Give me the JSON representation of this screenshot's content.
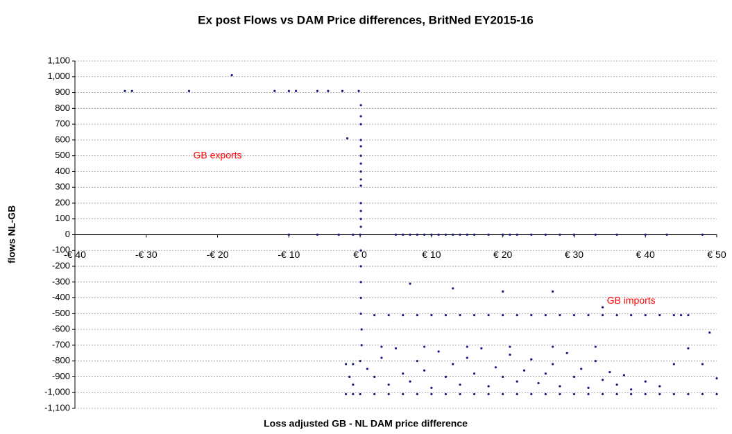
{
  "chart_data": {
    "type": "scatter",
    "title": "Ex post Flows vs DAM Price differences, BritNed EY2015-16",
    "x_label": "Loss adjusted GB - NL DAM price difference",
    "y_label": "flows NL-GB",
    "annotations": [
      {
        "text": "GB exports",
        "x": -20,
        "y": 500
      },
      {
        "text": "GB imports",
        "x": 38,
        "y": -420
      }
    ],
    "annotation_color": "#ff0000",
    "color": "#1a1a80",
    "grid": true,
    "xlim": [
      -40,
      50
    ],
    "ylim": [
      -1100,
      1100
    ],
    "xticks": [
      {
        "value": -40,
        "label": "-€ 40"
      },
      {
        "value": -30,
        "label": "-€ 30"
      },
      {
        "value": -20,
        "label": "-€ 20"
      },
      {
        "value": -10,
        "label": "-€ 10"
      },
      {
        "value": 0,
        "label": "€ 0"
      },
      {
        "value": 10,
        "label": "€ 10"
      },
      {
        "value": 20,
        "label": "€ 20"
      },
      {
        "value": 30,
        "label": "€ 30"
      },
      {
        "value": 40,
        "label": "€ 40"
      },
      {
        "value": 50,
        "label": "€ 50"
      }
    ],
    "yticks": [
      {
        "value": 1100,
        "label": "1,100"
      },
      {
        "value": 1000,
        "label": "1,000"
      },
      900,
      800,
      700,
      600,
      500,
      400,
      300,
      200,
      100,
      0,
      -100,
      -200,
      -300,
      -400,
      -500,
      -600,
      -700,
      -800,
      -900,
      {
        "value": -1000,
        "label": "-1,000"
      },
      {
        "value": -1100,
        "label": "-1,100"
      }
    ],
    "x": [
      -33,
      -32,
      -24,
      -18,
      -12,
      -10,
      -9,
      -6,
      -4.5,
      -2.5,
      -0.2,
      -1.8,
      0.1,
      0.1,
      0.1,
      0.1,
      0.1,
      0.1,
      0.1,
      0.1,
      0.1,
      0.1,
      0.1,
      0.1,
      0.1,
      0.1,
      0,
      -10,
      -6,
      -3,
      -1,
      5,
      6,
      7,
      8,
      9,
      10,
      11,
      12,
      13,
      14,
      15,
      16,
      18,
      20,
      21,
      22,
      24,
      26,
      28,
      30,
      33,
      36,
      40,
      43,
      48,
      0.1,
      0.1,
      0.1,
      0.1,
      0.1,
      0.2,
      0.2,
      0,
      -1,
      -2,
      -1.5,
      -1,
      -2,
      -1,
      0,
      2,
      4,
      6,
      8,
      10,
      12,
      14,
      16,
      18,
      20,
      22,
      24,
      26,
      28,
      30,
      32,
      34,
      36,
      38,
      40,
      42,
      44,
      46,
      48,
      50,
      2,
      4,
      6,
      8,
      10,
      12,
      14,
      16,
      18,
      20,
      22,
      24,
      26,
      28,
      30,
      32,
      34,
      36,
      38,
      40,
      42,
      44,
      46,
      1,
      2,
      3,
      4,
      5,
      6,
      7,
      8,
      9,
      10,
      11,
      12,
      13,
      14,
      15,
      16,
      17,
      18,
      19,
      20,
      21,
      22,
      23,
      24,
      25,
      26,
      27,
      28,
      29,
      30,
      31,
      32,
      33,
      34,
      35,
      36,
      37,
      38,
      40,
      42,
      7,
      13,
      20,
      27,
      34,
      45,
      49,
      46,
      44,
      48,
      50,
      3,
      9,
      15,
      21,
      27,
      33
    ],
    "values": [
      910,
      910,
      910,
      1010,
      910,
      910,
      910,
      910,
      910,
      910,
      910,
      610,
      820,
      750,
      700,
      600,
      560,
      500,
      450,
      400,
      350,
      310,
      200,
      150,
      100,
      50,
      0,
      0,
      0,
      0,
      0,
      0,
      0,
      0,
      0,
      0,
      0,
      0,
      0,
      0,
      0,
      0,
      0,
      0,
      0,
      0,
      0,
      0,
      0,
      0,
      0,
      0,
      0,
      0,
      0,
      0,
      -100,
      -200,
      -300,
      -400,
      -500,
      -600,
      -700,
      -800,
      -820,
      -820,
      -900,
      -950,
      -1010,
      -1010,
      -1010,
      -1010,
      -1010,
      -1010,
      -1010,
      -1010,
      -1010,
      -1010,
      -1010,
      -1010,
      -1010,
      -1010,
      -1010,
      -1010,
      -1010,
      -1010,
      -1010,
      -1010,
      -1010,
      -1010,
      -1010,
      -1010,
      -1010,
      -1010,
      -1010,
      -1010,
      -510,
      -510,
      -510,
      -510,
      -510,
      -510,
      -510,
      -510,
      -510,
      -510,
      -510,
      -510,
      -510,
      -510,
      -510,
      -510,
      -510,
      -510,
      -510,
      -510,
      -510,
      -510,
      -510,
      -850,
      -900,
      -780,
      -950,
      -720,
      -880,
      -930,
      -800,
      -860,
      -970,
      -740,
      -900,
      -820,
      -950,
      -780,
      -880,
      -720,
      -960,
      -840,
      -900,
      -760,
      -930,
      -860,
      -790,
      -940,
      -880,
      -820,
      -960,
      -750,
      -900,
      -850,
      -970,
      -800,
      -920,
      -870,
      -950,
      -890,
      -980,
      -930,
      -960,
      -310,
      -340,
      -360,
      -360,
      -460,
      -510,
      -620,
      -720,
      -820,
      -820,
      -910,
      -710,
      -710,
      -710,
      -710,
      -710,
      -710
    ]
  }
}
